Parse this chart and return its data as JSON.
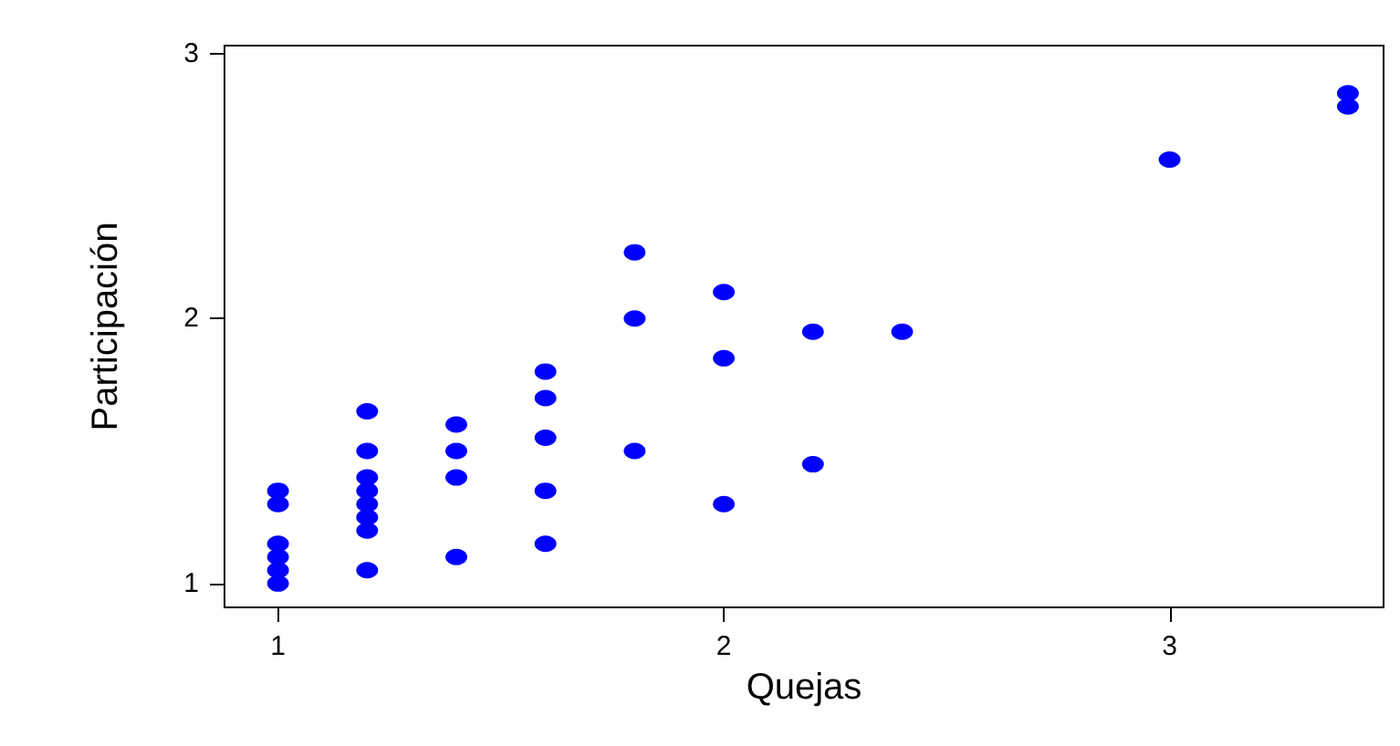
{
  "chart_data": {
    "type": "scatter",
    "xlabel": "Quejas",
    "ylabel": "Participación",
    "marker": "circle",
    "grid": false,
    "x": [
      1,
      1,
      1,
      1,
      1,
      1,
      1.2,
      1.2,
      1.2,
      1.2,
      1.2,
      1.2,
      1.2,
      1.2,
      1.4,
      1.4,
      1.4,
      1.4,
      1.6,
      1.6,
      1.6,
      1.6,
      1.6,
      1.8,
      1.8,
      1.8,
      2,
      2,
      2,
      2.2,
      2.2,
      2.4,
      3,
      3.4,
      3.4
    ],
    "series": [
      {
        "color": "#0000ff",
        "values": [
          1.35,
          1.3,
          1.15,
          1.1,
          1.05,
          1,
          1.65,
          1.5,
          1.4,
          1.35,
          1.3,
          1.25,
          1.2,
          1.05,
          1.6,
          1.5,
          1.4,
          1.1,
          1.8,
          1.7,
          1.55,
          1.35,
          1.15,
          2.25,
          2,
          1.5,
          2.1,
          1.85,
          1.3,
          1.95,
          1.45,
          1.95,
          2.6,
          2.85,
          2.8
        ]
      }
    ],
    "xlim": [
      0.88,
      3.48
    ],
    "xticks": [
      1,
      2,
      3
    ],
    "ylim": [
      0.91,
      3.03
    ],
    "yticks": [
      1,
      2,
      3
    ]
  }
}
